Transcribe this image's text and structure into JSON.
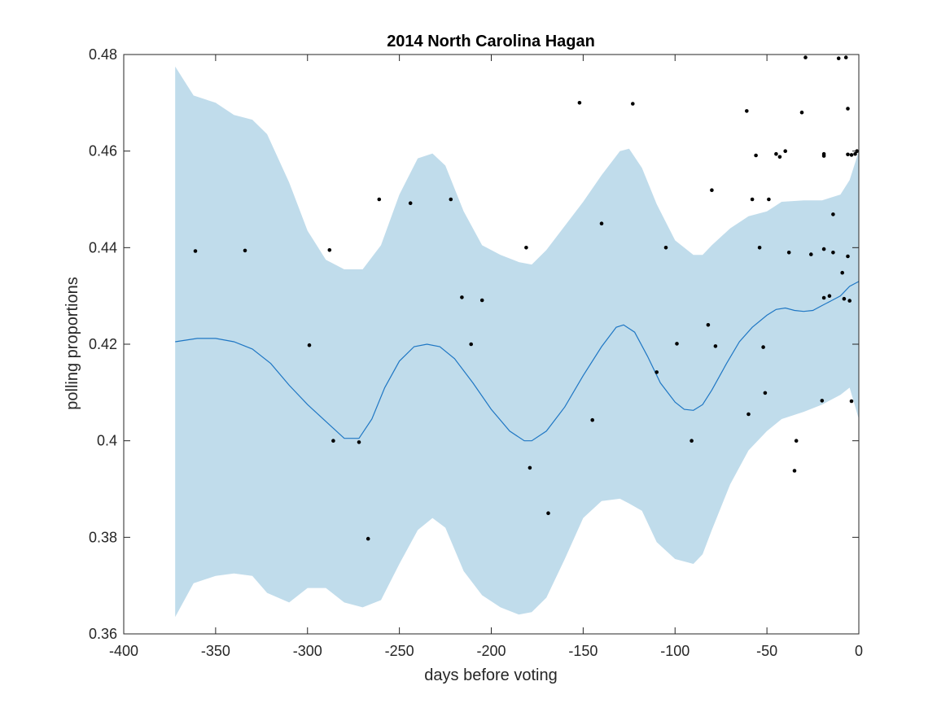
{
  "chart_data": {
    "type": "scatter",
    "title": "2014 North Carolina Hagan",
    "xlabel": "days before voting",
    "ylabel": "polling proportions",
    "xlim": [
      -400,
      0
    ],
    "ylim": [
      0.36,
      0.48
    ],
    "xticks": [
      -400,
      -350,
      -300,
      -250,
      -200,
      -150,
      -100,
      -50,
      0
    ],
    "xtick_labels": [
      "-400",
      "-350",
      "-300",
      "-250",
      "-200",
      "-150",
      "-100",
      "-50",
      "0"
    ],
    "yticks": [
      0.36,
      0.38,
      0.4,
      0.42,
      0.44,
      0.46,
      0.48
    ],
    "ytick_labels": [
      "0.36",
      "0.38",
      "0.4",
      "0.42",
      "0.44",
      "0.46",
      "0.48"
    ],
    "grid": false,
    "colors": {
      "band": "#c0dceb",
      "trend": "#1f77c4",
      "points": "#000000",
      "axes": "#262626"
    },
    "band": {
      "x": [
        -372,
        -362,
        -350,
        -340,
        -330,
        -322,
        -310,
        -300,
        -290,
        -280,
        -270,
        -260,
        -250,
        -240,
        -232,
        -225,
        -215,
        -205,
        -195,
        -185,
        -178,
        -170,
        -160,
        -150,
        -140,
        -130,
        -125,
        -118,
        -110,
        -100,
        -90,
        -85,
        -80,
        -70,
        -60,
        -50,
        -42,
        -30,
        -20,
        -10,
        -5,
        0
      ],
      "upper": [
        0.4775,
        0.4715,
        0.47,
        0.4675,
        0.4665,
        0.4635,
        0.4535,
        0.4435,
        0.4375,
        0.4355,
        0.4355,
        0.4405,
        0.451,
        0.4585,
        0.4595,
        0.457,
        0.4475,
        0.4405,
        0.4385,
        0.437,
        0.4365,
        0.4395,
        0.4445,
        0.4495,
        0.455,
        0.46,
        0.4605,
        0.4565,
        0.449,
        0.4415,
        0.4385,
        0.4385,
        0.4405,
        0.444,
        0.4465,
        0.4475,
        0.4495,
        0.4498,
        0.4498,
        0.451,
        0.454,
        0.46
      ],
      "lower": [
        0.3635,
        0.3705,
        0.372,
        0.3725,
        0.372,
        0.3685,
        0.3665,
        0.3695,
        0.3695,
        0.3665,
        0.3655,
        0.367,
        0.3745,
        0.3815,
        0.384,
        0.382,
        0.373,
        0.368,
        0.3655,
        0.364,
        0.3645,
        0.3675,
        0.3755,
        0.384,
        0.3875,
        0.388,
        0.387,
        0.3855,
        0.379,
        0.3755,
        0.3745,
        0.3765,
        0.3815,
        0.391,
        0.398,
        0.402,
        0.4045,
        0.406,
        0.4075,
        0.4095,
        0.411,
        0.4045
      ]
    },
    "trend": {
      "x": [
        -372,
        -360,
        -350,
        -340,
        -330,
        -320,
        -310,
        -300,
        -290,
        -280,
        -272,
        -265,
        -258,
        -250,
        -242,
        -235,
        -228,
        -220,
        -210,
        -200,
        -190,
        -182,
        -178,
        -170,
        -160,
        -150,
        -140,
        -132,
        -128,
        -122,
        -115,
        -108,
        -100,
        -95,
        -90,
        -85,
        -80,
        -72,
        -65,
        -58,
        -50,
        -45,
        -40,
        -35,
        -30,
        -25,
        -20,
        -15,
        -10,
        -5,
        0
      ],
      "y": [
        0.4205,
        0.4212,
        0.4212,
        0.4205,
        0.419,
        0.416,
        0.4115,
        0.4075,
        0.404,
        0.4005,
        0.4005,
        0.4045,
        0.411,
        0.4165,
        0.4195,
        0.42,
        0.4195,
        0.417,
        0.412,
        0.4065,
        0.402,
        0.4,
        0.4,
        0.402,
        0.407,
        0.4135,
        0.4195,
        0.4235,
        0.424,
        0.4225,
        0.4175,
        0.412,
        0.408,
        0.4065,
        0.4063,
        0.4075,
        0.4105,
        0.416,
        0.4205,
        0.4235,
        0.426,
        0.4272,
        0.4275,
        0.427,
        0.4268,
        0.427,
        0.428,
        0.429,
        0.43,
        0.432,
        0.433
      ]
    },
    "points": [
      {
        "x": -361,
        "y": 0.4393
      },
      {
        "x": -334,
        "y": 0.4394
      },
      {
        "x": -299,
        "y": 0.4198
      },
      {
        "x": -288,
        "y": 0.4395
      },
      {
        "x": -286,
        "y": 0.4
      },
      {
        "x": -272,
        "y": 0.3997
      },
      {
        "x": -267,
        "y": 0.3797
      },
      {
        "x": -261,
        "y": 0.45
      },
      {
        "x": -244,
        "y": 0.4492
      },
      {
        "x": -222,
        "y": 0.45
      },
      {
        "x": -216,
        "y": 0.4297
      },
      {
        "x": -211,
        "y": 0.42
      },
      {
        "x": -205,
        "y": 0.4291
      },
      {
        "x": -181,
        "y": 0.44
      },
      {
        "x": -179,
        "y": 0.3944
      },
      {
        "x": -169,
        "y": 0.385
      },
      {
        "x": -152,
        "y": 0.47
      },
      {
        "x": -145,
        "y": 0.4043
      },
      {
        "x": -140,
        "y": 0.445
      },
      {
        "x": -123,
        "y": 0.4698
      },
      {
        "x": -110,
        "y": 0.4142
      },
      {
        "x": -105,
        "y": 0.44
      },
      {
        "x": -99,
        "y": 0.4201
      },
      {
        "x": -91,
        "y": 0.4
      },
      {
        "x": -82,
        "y": 0.424
      },
      {
        "x": -80,
        "y": 0.4519
      },
      {
        "x": -78,
        "y": 0.4196
      },
      {
        "x": -61,
        "y": 0.4683
      },
      {
        "x": -60,
        "y": 0.4055
      },
      {
        "x": -58,
        "y": 0.45
      },
      {
        "x": -56,
        "y": 0.4591
      },
      {
        "x": -54,
        "y": 0.44
      },
      {
        "x": -52,
        "y": 0.4194
      },
      {
        "x": -51,
        "y": 0.4099
      },
      {
        "x": -49,
        "y": 0.45
      },
      {
        "x": -45,
        "y": 0.4594
      },
      {
        "x": -43,
        "y": 0.4588
      },
      {
        "x": -40,
        "y": 0.46
      },
      {
        "x": -38,
        "y": 0.439
      },
      {
        "x": -35,
        "y": 0.3938
      },
      {
        "x": -34,
        "y": 0.4
      },
      {
        "x": -31,
        "y": 0.468
      },
      {
        "x": -29,
        "y": 0.4794
      },
      {
        "x": -26,
        "y": 0.4386
      },
      {
        "x": -20,
        "y": 0.4083
      },
      {
        "x": -19,
        "y": 0.4296
      },
      {
        "x": -19,
        "y": 0.4397
      },
      {
        "x": -19,
        "y": 0.459
      },
      {
        "x": -19,
        "y": 0.4594
      },
      {
        "x": -16,
        "y": 0.43
      },
      {
        "x": -14,
        "y": 0.4469
      },
      {
        "x": -14,
        "y": 0.439
      },
      {
        "x": -11,
        "y": 0.4792
      },
      {
        "x": -9,
        "y": 0.4348
      },
      {
        "x": -8,
        "y": 0.4294
      },
      {
        "x": -7,
        "y": 0.4794
      },
      {
        "x": -6,
        "y": 0.4382
      },
      {
        "x": -6,
        "y": 0.4688
      },
      {
        "x": -6,
        "y": 0.4593
      },
      {
        "x": -5,
        "y": 0.429
      },
      {
        "x": -4,
        "y": 0.4082
      },
      {
        "x": -4,
        "y": 0.4592
      },
      {
        "x": -2,
        "y": 0.4594
      },
      {
        "x": -1,
        "y": 0.46
      }
    ]
  }
}
